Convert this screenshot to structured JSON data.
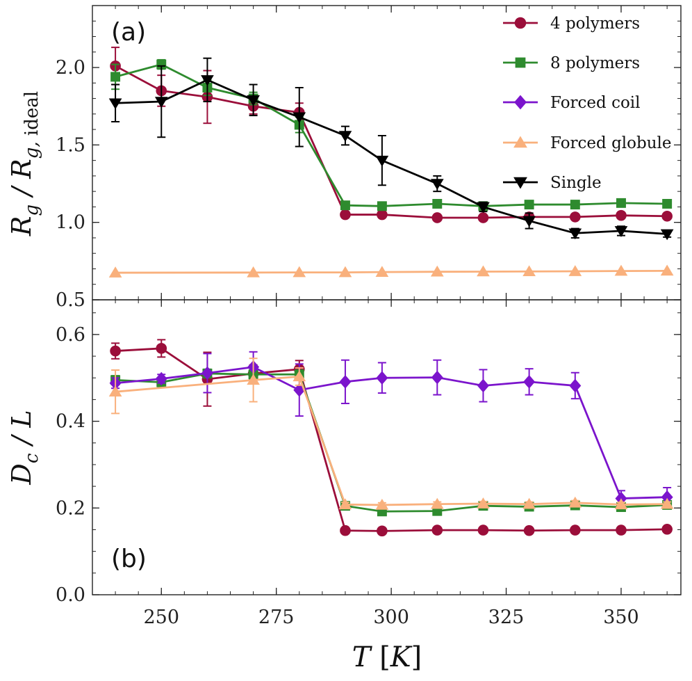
{
  "chart_data": {
    "type": "line",
    "xlabel": "T [K]",
    "xlim": [
      235,
      363
    ],
    "xticks": [
      250,
      275,
      300,
      325,
      350
    ],
    "legend_position": "top-right of panel (a)",
    "panels": [
      {
        "label": "(a)",
        "ylabel": "R_g / R_g, ideal",
        "ylim": [
          0.5,
          2.4
        ],
        "yticks": [
          0.5,
          1.0,
          1.5,
          2.0
        ],
        "series": [
          {
            "name": "4 polymers",
            "color": "#9b0e3a",
            "marker": "circle",
            "x": [
              240,
              250,
              260,
              270,
              280,
              290,
              298,
              310,
              320,
              330,
              340,
              350,
              360
            ],
            "y": [
              2.01,
              1.85,
              1.81,
              1.75,
              1.71,
              1.05,
              1.05,
              1.03,
              1.03,
              1.035,
              1.035,
              1.045,
              1.04
            ],
            "err": [
              0.12,
              0.1,
              0.17,
              0.05,
              0.06,
              0.01,
              0.01,
              0.01,
              0.01,
              0.01,
              0.01,
              0.01,
              0.01
            ]
          },
          {
            "name": "8 polymers",
            "color": "#2e8b2e",
            "marker": "square",
            "x": [
              240,
              250,
              260,
              270,
              280,
              290,
              298,
              310,
              320,
              330,
              340,
              350,
              360
            ],
            "y": [
              1.94,
              2.02,
              1.87,
              1.8,
              1.63,
              1.11,
              1.105,
              1.12,
              1.105,
              1.115,
              1.115,
              1.125,
              1.12
            ],
            "err": [
              0.08,
              0.03,
              0.05,
              0.04,
              0.05,
              0.02,
              0.02,
              0.02,
              0.02,
              0.02,
              0.02,
              0.02,
              0.02
            ]
          },
          {
            "name": "Forced coil",
            "color": "#7b14cc",
            "marker": "diamond",
            "x": [],
            "y": [],
            "err": []
          },
          {
            "name": "Forced globule",
            "color": "#f9b07c",
            "marker": "triangle-up",
            "x": [
              240,
              270,
              280,
              290,
              298,
              310,
              320,
              330,
              340,
              350,
              360
            ],
            "y": [
              0.675,
              0.676,
              0.677,
              0.677,
              0.679,
              0.681,
              0.682,
              0.683,
              0.684,
              0.686,
              0.687
            ],
            "err": [
              0,
              0,
              0,
              0,
              0,
              0,
              0,
              0,
              0,
              0,
              0
            ]
          },
          {
            "name": "Single",
            "color": "#000000",
            "marker": "triangle-down",
            "x": [
              240,
              250,
              260,
              270,
              280,
              290,
              298,
              310,
              320,
              330,
              340,
              350,
              360
            ],
            "y": [
              1.77,
              1.78,
              1.92,
              1.79,
              1.68,
              1.56,
              1.4,
              1.25,
              1.1,
              1.01,
              0.93,
              0.945,
              0.925
            ],
            "err": [
              0.12,
              0.23,
              0.14,
              0.1,
              0.19,
              0.06,
              0.16,
              0.05,
              0.03,
              0.05,
              0.03,
              0.03,
              0.02
            ]
          }
        ]
      },
      {
        "label": "(b)",
        "ylabel": "D_c / L",
        "ylim": [
          0.0,
          0.68
        ],
        "yticks": [
          0.0,
          0.2,
          0.4,
          0.6
        ],
        "series": [
          {
            "name": "4 polymers",
            "color": "#9b0e3a",
            "marker": "circle",
            "x": [
              240,
              250,
              260,
              270,
              280,
              290,
              298,
              310,
              320,
              330,
              340,
              350,
              360
            ],
            "y": [
              0.562,
              0.568,
              0.497,
              0.51,
              0.52,
              0.148,
              0.147,
              0.149,
              0.149,
              0.148,
              0.149,
              0.149,
              0.151
            ],
            "err": [
              0.018,
              0.02,
              0.062,
              0.02,
              0.02,
              0.003,
              0.003,
              0.003,
              0.003,
              0.003,
              0.003,
              0.003,
              0.003
            ]
          },
          {
            "name": "8 polymers",
            "color": "#2e8b2e",
            "marker": "square",
            "x": [
              240,
              250,
              260,
              270,
              280,
              290,
              298,
              310,
              320,
              330,
              340,
              350,
              360
            ],
            "y": [
              0.495,
              0.49,
              0.51,
              0.508,
              0.508,
              0.205,
              0.192,
              0.193,
              0.205,
              0.203,
              0.206,
              0.202,
              0.207
            ],
            "err": [
              0.01,
              0.01,
              0.01,
              0.01,
              0.01,
              0.005,
              0.005,
              0.005,
              0.005,
              0.005,
              0.005,
              0.005,
              0.005
            ]
          },
          {
            "name": "Forced coil",
            "color": "#7b14cc",
            "marker": "diamond",
            "x": [
              240,
              250,
              260,
              270,
              280,
              290,
              298,
              310,
              320,
              330,
              340,
              350,
              360
            ],
            "y": [
              0.488,
              0.498,
              0.511,
              0.525,
              0.472,
              0.491,
              0.5,
              0.501,
              0.482,
              0.491,
              0.482,
              0.222,
              0.225
            ],
            "err": [
              0.012,
              0.01,
              0.045,
              0.035,
              0.06,
              0.05,
              0.035,
              0.04,
              0.037,
              0.03,
              0.03,
              0.018,
              0.022
            ]
          },
          {
            "name": "Forced globule",
            "color": "#f9b07c",
            "marker": "triangle-up",
            "x": [
              240,
              270,
              280,
              290,
              298,
              310,
              320,
              330,
              340,
              350,
              360
            ],
            "y": [
              0.468,
              0.495,
              0.503,
              0.208,
              0.207,
              0.209,
              0.21,
              0.209,
              0.212,
              0.208,
              0.209
            ],
            "err": [
              0.05,
              0.05,
              0.02,
              0.005,
              0.005,
              0.005,
              0.005,
              0.005,
              0.005,
              0.005,
              0.005
            ]
          }
        ]
      }
    ]
  }
}
